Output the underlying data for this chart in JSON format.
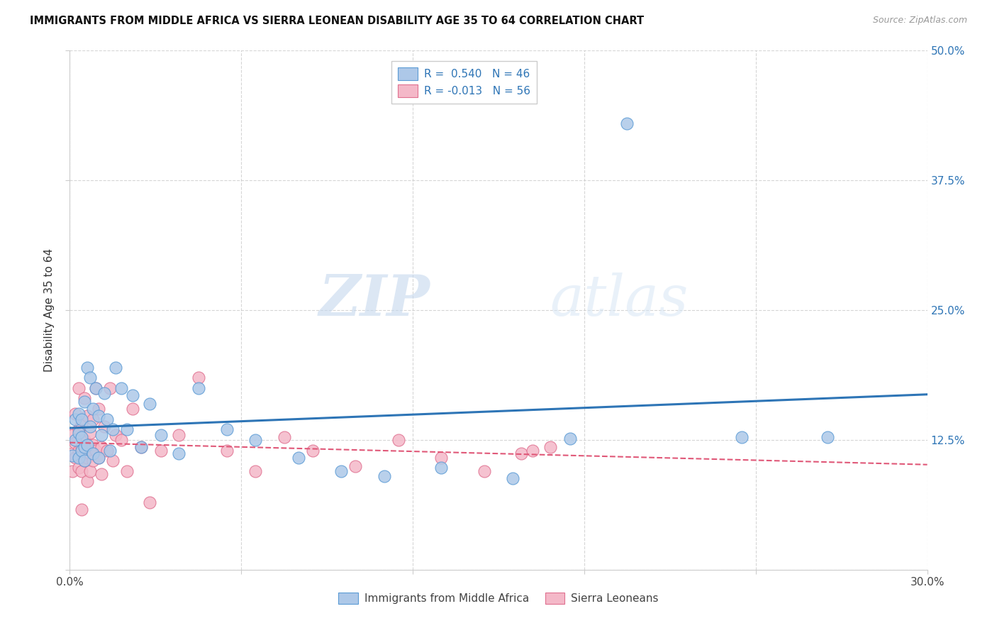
{
  "title": "IMMIGRANTS FROM MIDDLE AFRICA VS SIERRA LEONEAN DISABILITY AGE 35 TO 64 CORRELATION CHART",
  "source": "Source: ZipAtlas.com",
  "ylabel": "Disability Age 35 to 64",
  "xlim": [
    0.0,
    0.3
  ],
  "ylim": [
    0.0,
    0.5
  ],
  "blue_R": 0.54,
  "blue_N": 46,
  "pink_R": -0.013,
  "pink_N": 56,
  "blue_color": "#adc8e8",
  "blue_edge_color": "#5b9bd5",
  "blue_line_color": "#2e75b6",
  "pink_color": "#f4b8c8",
  "pink_edge_color": "#e07090",
  "pink_line_color": "#e05878",
  "blue_label": "Immigrants from Middle Africa",
  "pink_label": "Sierra Leoneans",
  "watermark_zip": "ZIP",
  "watermark_atlas": "atlas",
  "blue_scatter_x": [
    0.001,
    0.002,
    0.002,
    0.003,
    0.003,
    0.003,
    0.004,
    0.004,
    0.004,
    0.005,
    0.005,
    0.005,
    0.006,
    0.006,
    0.007,
    0.007,
    0.008,
    0.008,
    0.009,
    0.01,
    0.01,
    0.011,
    0.012,
    0.013,
    0.014,
    0.015,
    0.016,
    0.018,
    0.02,
    0.022,
    0.025,
    0.028,
    0.032,
    0.038,
    0.045,
    0.055,
    0.065,
    0.08,
    0.095,
    0.11,
    0.13,
    0.155,
    0.175,
    0.195,
    0.235,
    0.265
  ],
  "blue_scatter_y": [
    0.11,
    0.125,
    0.145,
    0.108,
    0.132,
    0.15,
    0.115,
    0.128,
    0.145,
    0.105,
    0.118,
    0.162,
    0.12,
    0.195,
    0.138,
    0.185,
    0.112,
    0.155,
    0.175,
    0.108,
    0.148,
    0.13,
    0.17,
    0.145,
    0.115,
    0.135,
    0.195,
    0.175,
    0.135,
    0.168,
    0.118,
    0.16,
    0.13,
    0.112,
    0.175,
    0.135,
    0.125,
    0.108,
    0.095,
    0.09,
    0.098,
    0.088,
    0.126,
    0.43,
    0.128,
    0.128
  ],
  "pink_scatter_x": [
    0.001,
    0.001,
    0.001,
    0.002,
    0.002,
    0.002,
    0.003,
    0.003,
    0.003,
    0.003,
    0.004,
    0.004,
    0.004,
    0.004,
    0.005,
    0.005,
    0.005,
    0.006,
    0.006,
    0.006,
    0.007,
    0.007,
    0.007,
    0.008,
    0.008,
    0.008,
    0.009,
    0.009,
    0.01,
    0.01,
    0.011,
    0.011,
    0.012,
    0.013,
    0.014,
    0.015,
    0.016,
    0.018,
    0.02,
    0.022,
    0.025,
    0.028,
    0.032,
    0.038,
    0.045,
    0.055,
    0.065,
    0.075,
    0.085,
    0.1,
    0.115,
    0.13,
    0.145,
    0.158,
    0.162,
    0.168
  ],
  "pink_scatter_y": [
    0.095,
    0.112,
    0.13,
    0.15,
    0.108,
    0.122,
    0.175,
    0.098,
    0.115,
    0.135,
    0.095,
    0.118,
    0.14,
    0.058,
    0.105,
    0.125,
    0.165,
    0.108,
    0.148,
    0.085,
    0.112,
    0.132,
    0.095,
    0.12,
    0.145,
    0.105,
    0.115,
    0.175,
    0.108,
    0.155,
    0.118,
    0.092,
    0.138,
    0.115,
    0.175,
    0.105,
    0.13,
    0.125,
    0.095,
    0.155,
    0.118,
    0.065,
    0.115,
    0.13,
    0.185,
    0.115,
    0.095,
    0.128,
    0.115,
    0.1,
    0.125,
    0.108,
    0.095,
    0.112,
    0.115,
    0.118
  ]
}
